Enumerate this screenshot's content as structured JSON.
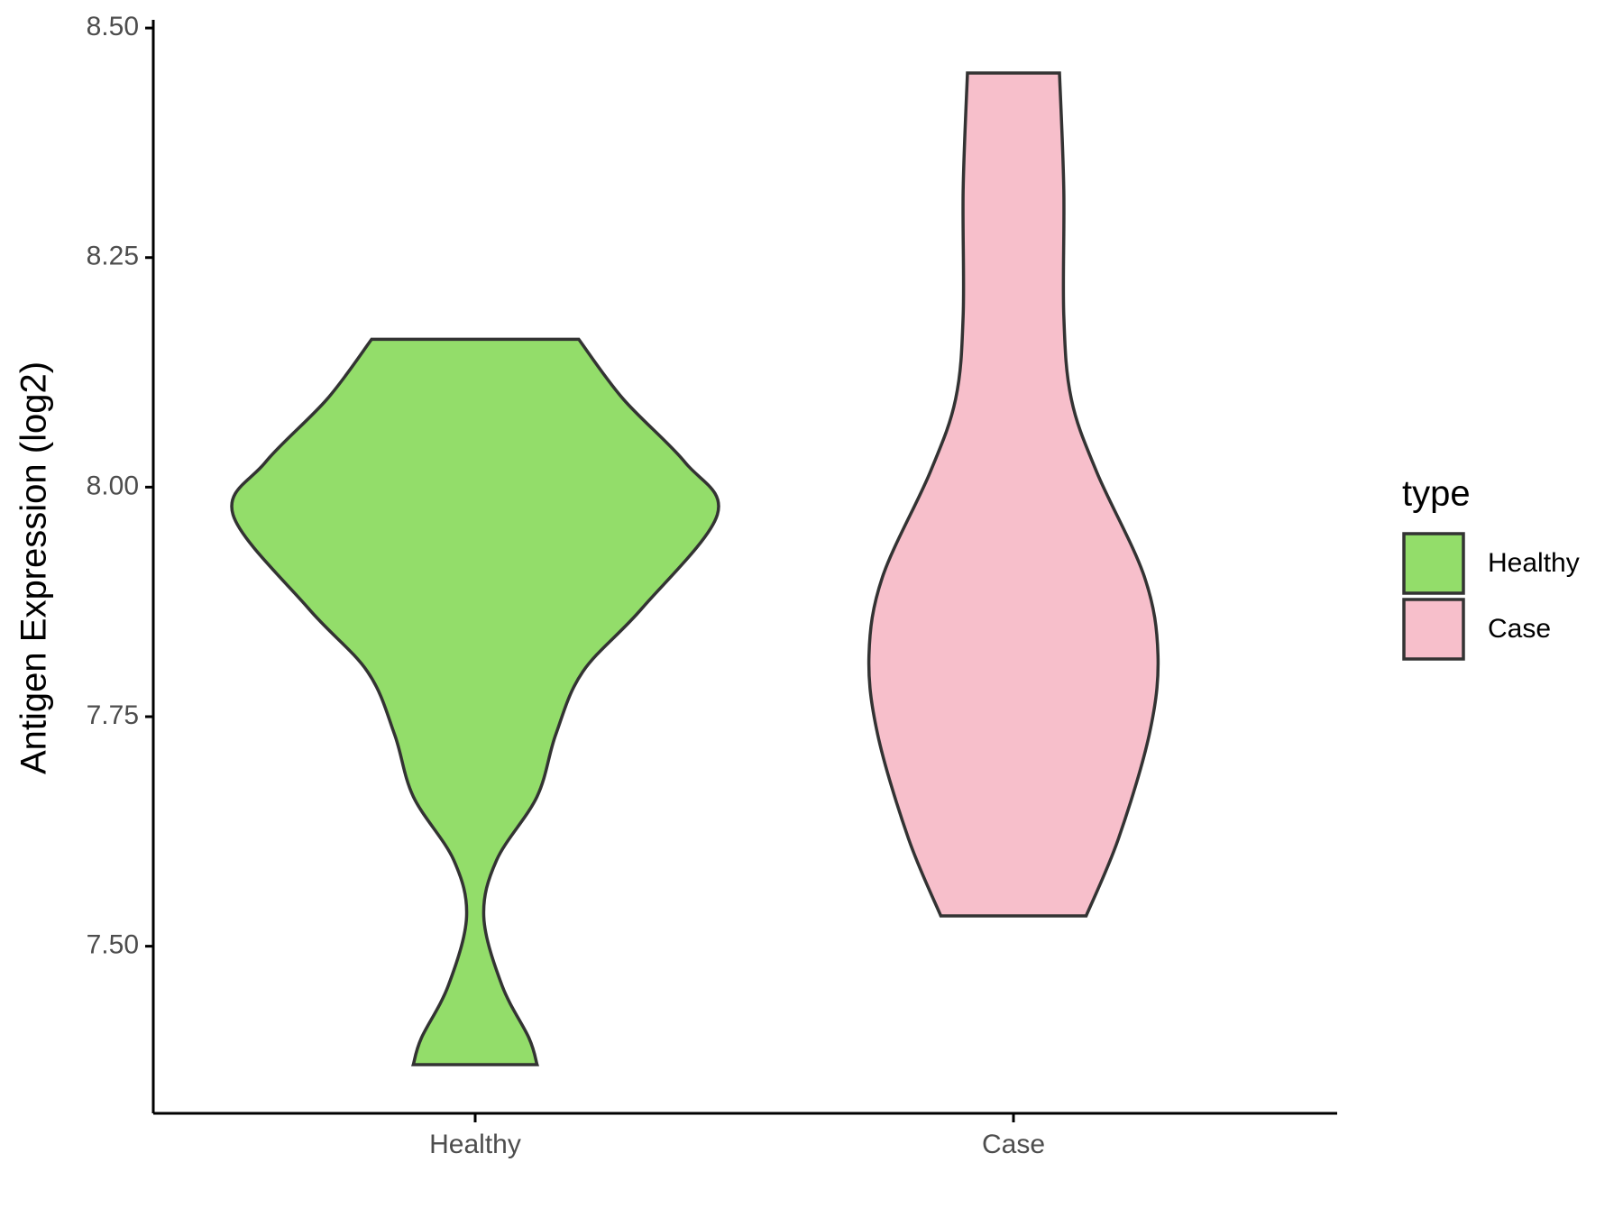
{
  "chart_data": {
    "type": "violin",
    "y_label": "Antigen Expression (log2)",
    "categories": [
      "Healthy",
      "Case"
    ],
    "legend_title": "type",
    "legend": "right",
    "ylim": [
      7.318,
      8.505
    ],
    "yticks": [
      {
        "value": 7.5,
        "label": "7.50"
      },
      {
        "value": 7.75,
        "label": "7.75"
      },
      {
        "value": 8.0,
        "label": "8.00"
      },
      {
        "value": 8.25,
        "label": "8.25"
      },
      {
        "value": 8.5,
        "label": "8.50"
      }
    ],
    "series": [
      {
        "name": "Healthy",
        "color": "#93dd6a",
        "y": [
          7.371,
          7.4,
          7.457,
          7.532,
          7.594,
          7.663,
          7.731,
          7.799,
          7.868,
          7.97,
          8.027,
          8.096,
          8.161
        ],
        "width": [
          0.23,
          0.2,
          0.1,
          0.032,
          0.08,
          0.23,
          0.3,
          0.4,
          0.62,
          0.9,
          0.78,
          0.55,
          0.385
        ]
      },
      {
        "name": "Case",
        "color": "#f7bfcb",
        "y": [
          7.533,
          7.617,
          7.731,
          7.817,
          7.902,
          8.016,
          8.096,
          8.187,
          8.324,
          8.451
        ],
        "width": [
          0.27,
          0.39,
          0.505,
          0.537,
          0.487,
          0.31,
          0.215,
          0.187,
          0.187,
          0.171
        ]
      }
    ]
  }
}
